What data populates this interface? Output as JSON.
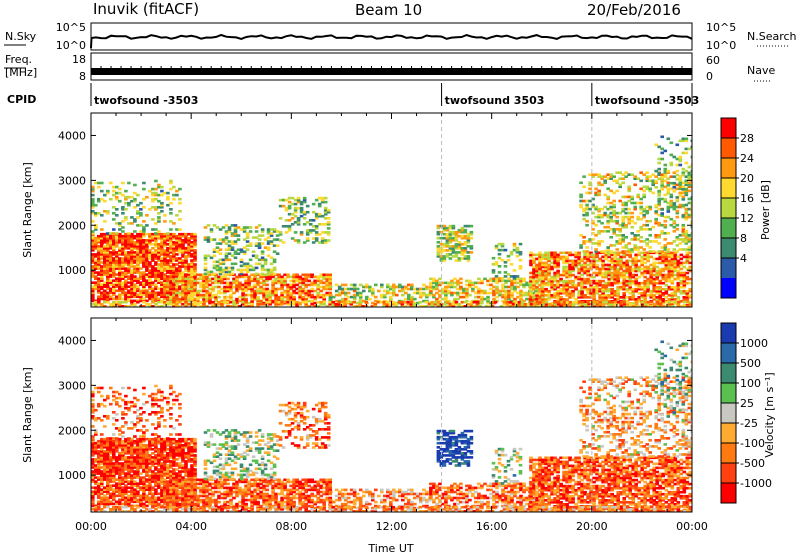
{
  "header": {
    "title": "Inuvik (fitACF)",
    "beam": "Beam 10",
    "date": "20/Feb/2016"
  },
  "nsky_panel": {
    "left_label": "N.Sky",
    "right_label": "N.Search",
    "left_ticks": [
      "10^5",
      "10^0"
    ],
    "right_ticks": [
      "10^5",
      "10^0"
    ]
  },
  "freq_panel": {
    "left_label_1": "Freq.",
    "left_label_2": "[MHz]",
    "right_label": "Nave",
    "left_ticks": [
      "18",
      "8"
    ],
    "right_ticks": [
      "60",
      "0"
    ]
  },
  "cpid": {
    "label": "CPID",
    "segments": [
      {
        "name": "twofsound -3503",
        "start_hour": 0,
        "end_hour": 14.0
      },
      {
        "name": "twofsound 3503",
        "start_hour": 14.0,
        "end_hour": 20.0
      },
      {
        "name": "twofsound -3503",
        "start_hour": 20.0,
        "end_hour": 24
      }
    ]
  },
  "x_axis": {
    "label": "Time UT",
    "ticks": [
      "00:00",
      "04:00",
      "08:00",
      "12:00",
      "16:00",
      "20:00",
      "00:00"
    ]
  },
  "power_panel": {
    "ylabel": "Slant Range [km]",
    "yticks": [
      "4000",
      "3000",
      "2000",
      "1000"
    ],
    "cbar_label": "Power [dB]",
    "cbar_ticks": [
      "28",
      "24",
      "20",
      "16",
      "12",
      "8",
      "4"
    ],
    "cbar_colors": [
      "#ff0000",
      "#ff5a00",
      "#ff9a10",
      "#ffd830",
      "#b8d840",
      "#50b050",
      "#3c8a70",
      "#2a5aa8",
      "#0000ff"
    ]
  },
  "velocity_panel": {
    "ylabel": "Slant Range [km]",
    "yticks": [
      "4000",
      "3000",
      "2000",
      "1000"
    ],
    "cbar_label": "Velocity [m s⁻¹]",
    "cbar_ticks": [
      "1000",
      "500",
      "100",
      "25",
      "-25",
      "-100",
      "-500",
      "-1000"
    ],
    "cbar_colors": [
      "#1a3ab0",
      "#2a6aa8",
      "#3c8a70",
      "#5ac050",
      "#c8c8c0",
      "#ffaa30",
      "#ff7a10",
      "#ff4010",
      "#ff0000"
    ]
  },
  "chart_data": {
    "type": "heatmap",
    "title": "Inuvik (fitACF)",
    "xlabel": "Time UT",
    "ylabel": "Slant Range [km]",
    "xlim": [
      0,
      24
    ],
    "ylim": [
      180,
      4500
    ],
    "x": [
      "00:00",
      "04:00",
      "08:00",
      "12:00",
      "16:00",
      "20:00",
      "00:00"
    ],
    "series": [
      {
        "name": "Power [dB]",
        "zlim": [
          0,
          30
        ]
      },
      {
        "name": "Velocity [m s-1]",
        "zlim": [
          -1000,
          1000
        ]
      }
    ]
  }
}
